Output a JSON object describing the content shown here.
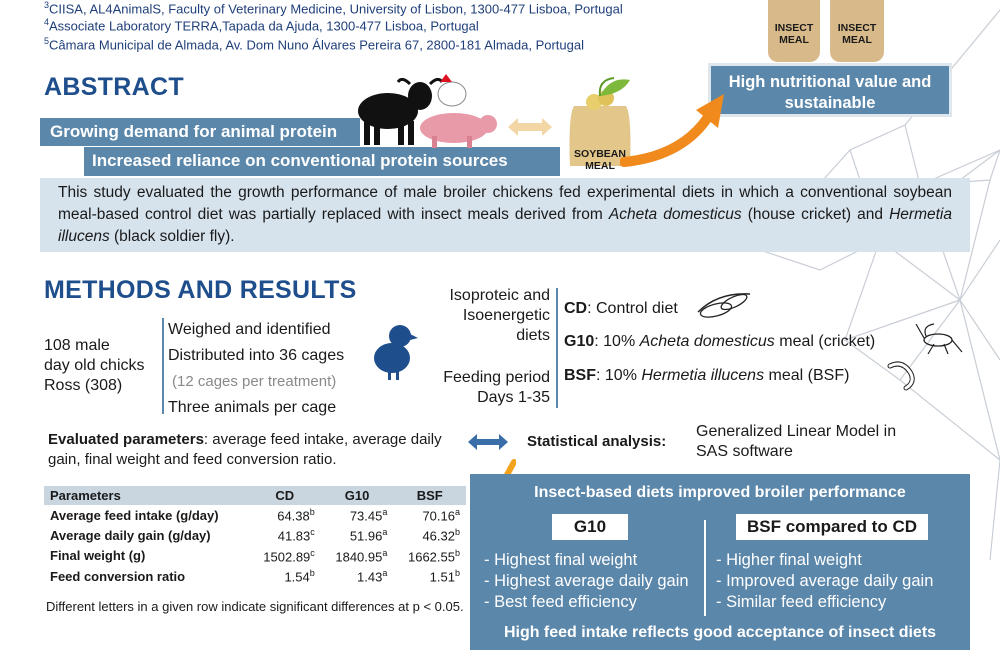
{
  "affiliations": [
    {
      "num": "3",
      "text": "CIISA, AL4AnimalS, Faculty of Veterinary Medicine, University of Lisbon, 1300-477 Lisboa, Portugal"
    },
    {
      "num": "4",
      "text": "Associate Laboratory TERRA,Tapada da Ajuda, 1300-477 Lisboa, Portugal"
    },
    {
      "num": "5",
      "text": "Câmara Municipal de Almada, Av. Dom Nuno Álvares Pereira 67, 2800-181 Almada, Portugal"
    }
  ],
  "insect_bags": [
    "INSECT\nMEAL",
    "INSECT\nMEAL"
  ],
  "insect_value_box": "High nutritional value and sustainable",
  "abstract": {
    "heading": "ABSTRACT",
    "bar1": "Growing demand for animal protein",
    "bar2": "Increased reliance on conventional protein sources",
    "soybean_label": "SOYBEAN\nMEAL",
    "summary_parts": {
      "p1": "This study evaluated the growth performance of male broiler chickens fed experimental diets in which a conventional soybean meal-based control diet was partially replaced with insect meals derived from ",
      "species1": "Acheta domesticus",
      "p2": " (house cricket) and ",
      "species2": "Hermetia illucens",
      "p3": " (black soldier fly)."
    }
  },
  "methods": {
    "heading": "METHODS AND RESULTS",
    "animals": {
      "line1": "108 male",
      "line2": "day old chicks",
      "line3": "Ross (308)"
    },
    "steps": [
      "Weighed and identified",
      "Distributed into 36 cages",
      "(12 cages per treatment)",
      "Three animals per cage"
    ],
    "diet_desc": {
      "line1": "Isoproteic and",
      "line2": "Isoenergetic",
      "line3": "diets"
    },
    "period": {
      "line1": "Feeding period",
      "line2": "Days 1-35"
    },
    "diets": [
      {
        "code": "CD",
        "desc": ": Control diet",
        "species": "",
        "after": "",
        "icon": "soybean-icon"
      },
      {
        "code": "G10",
        "desc": ": 10% ",
        "species": "Acheta domesticus",
        "after": " meal (cricket)",
        "icon": "cricket-icon"
      },
      {
        "code": "BSF",
        "desc": ": 10% ",
        "species": "Hermetia illucens",
        "after": " meal (BSF)",
        "icon": "larvae-icon"
      }
    ],
    "evaluated": {
      "label": "Evaluated parameters",
      "text": ": average feed intake, average daily gain, final weight and feed conversion ratio."
    },
    "stats": {
      "label": "Statistical analysis:",
      "text": "Generalized Linear Model in SAS software"
    }
  },
  "table": {
    "headers": [
      "Parameters",
      "CD",
      "G10",
      "BSF"
    ],
    "rows": [
      {
        "name": "Average feed intake (g/day)",
        "vals": [
          [
            "64.38",
            "b"
          ],
          [
            "73.45",
            "a"
          ],
          [
            "70.16",
            "a"
          ]
        ]
      },
      {
        "name": "Average daily gain (g/day)",
        "vals": [
          [
            "41.83",
            "c"
          ],
          [
            "51.96",
            "a"
          ],
          [
            "46.32",
            "b"
          ]
        ]
      },
      {
        "name": "Final weight (g)",
        "vals": [
          [
            "1502.89",
            "c"
          ],
          [
            "1840.95",
            "a"
          ],
          [
            "1662.55",
            "b"
          ]
        ]
      },
      {
        "name": "Feed conversion ratio",
        "vals": [
          [
            "1.54",
            "b"
          ],
          [
            "1.43",
            "a"
          ],
          [
            "1.51",
            "b"
          ]
        ]
      }
    ],
    "footnote": "Different letters in a given row indicate significant differences at p < 0.05."
  },
  "results": {
    "title": "Insect-based diets improved broiler performance",
    "g10_label": "G10",
    "bsf_label": "BSF compared to CD",
    "g10_items": [
      "- Highest final weight",
      "- Highest average daily gain",
      "- Best feed efficiency"
    ],
    "bsf_items": [
      "- Higher final weight",
      "- Improved average daily gain",
      "- Similar feed efficiency"
    ],
    "footer": "High feed intake reflects good acceptance of insect diets"
  },
  "colors": {
    "accent": "#1f4e8c",
    "bar": "#5b87ab",
    "light": "#d6e3ed",
    "orange": "#f08a1c"
  }
}
